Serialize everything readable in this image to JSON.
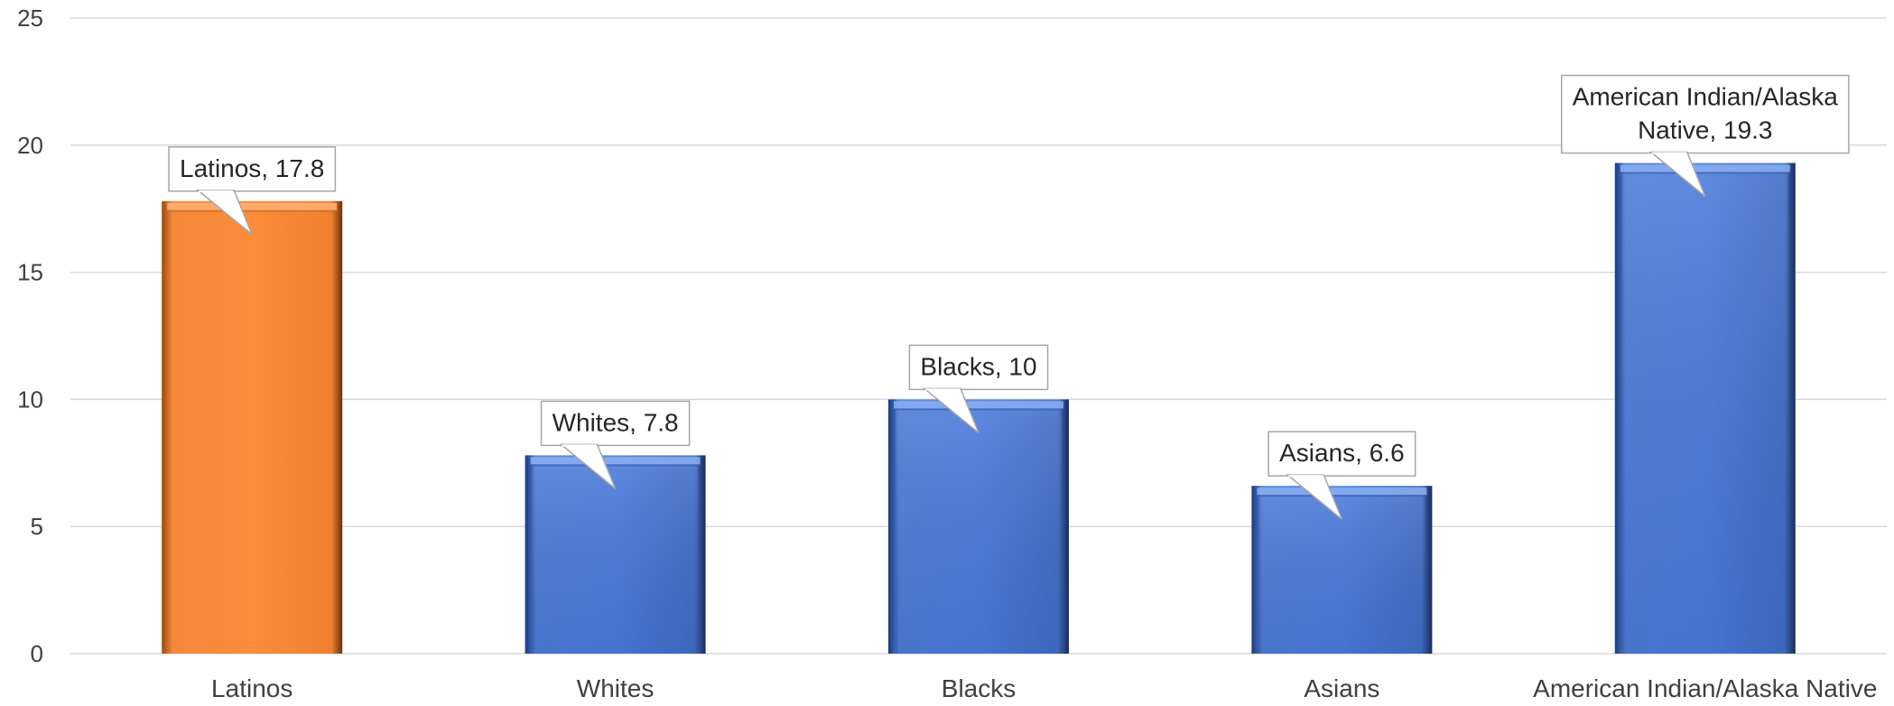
{
  "chart_data": {
    "type": "bar",
    "title": "",
    "xlabel": "",
    "ylabel": "",
    "ylim": [
      0,
      25
    ],
    "yticks": [
      "0",
      "5",
      "10",
      "15",
      "20",
      "25"
    ],
    "grid": true,
    "categories": [
      "Latinos",
      "Whites",
      "Blacks",
      "Asians",
      "American Indian/Alaska Native"
    ],
    "values": [
      17.8,
      7.8,
      10,
      6.6,
      19.3
    ],
    "data_labels": [
      [
        "Latinos, 17.8"
      ],
      [
        "Whites, 7.8"
      ],
      [
        "Blacks, 10"
      ],
      [
        "Asians, 6.6"
      ],
      [
        "American Indian/Alaska",
        "Native, 19.3"
      ]
    ],
    "colors": {
      "highlight": "#F5883A",
      "default": "#4472C4",
      "grid": "#D9D9D9",
      "text": "#404040"
    },
    "highlight_index": 0
  }
}
